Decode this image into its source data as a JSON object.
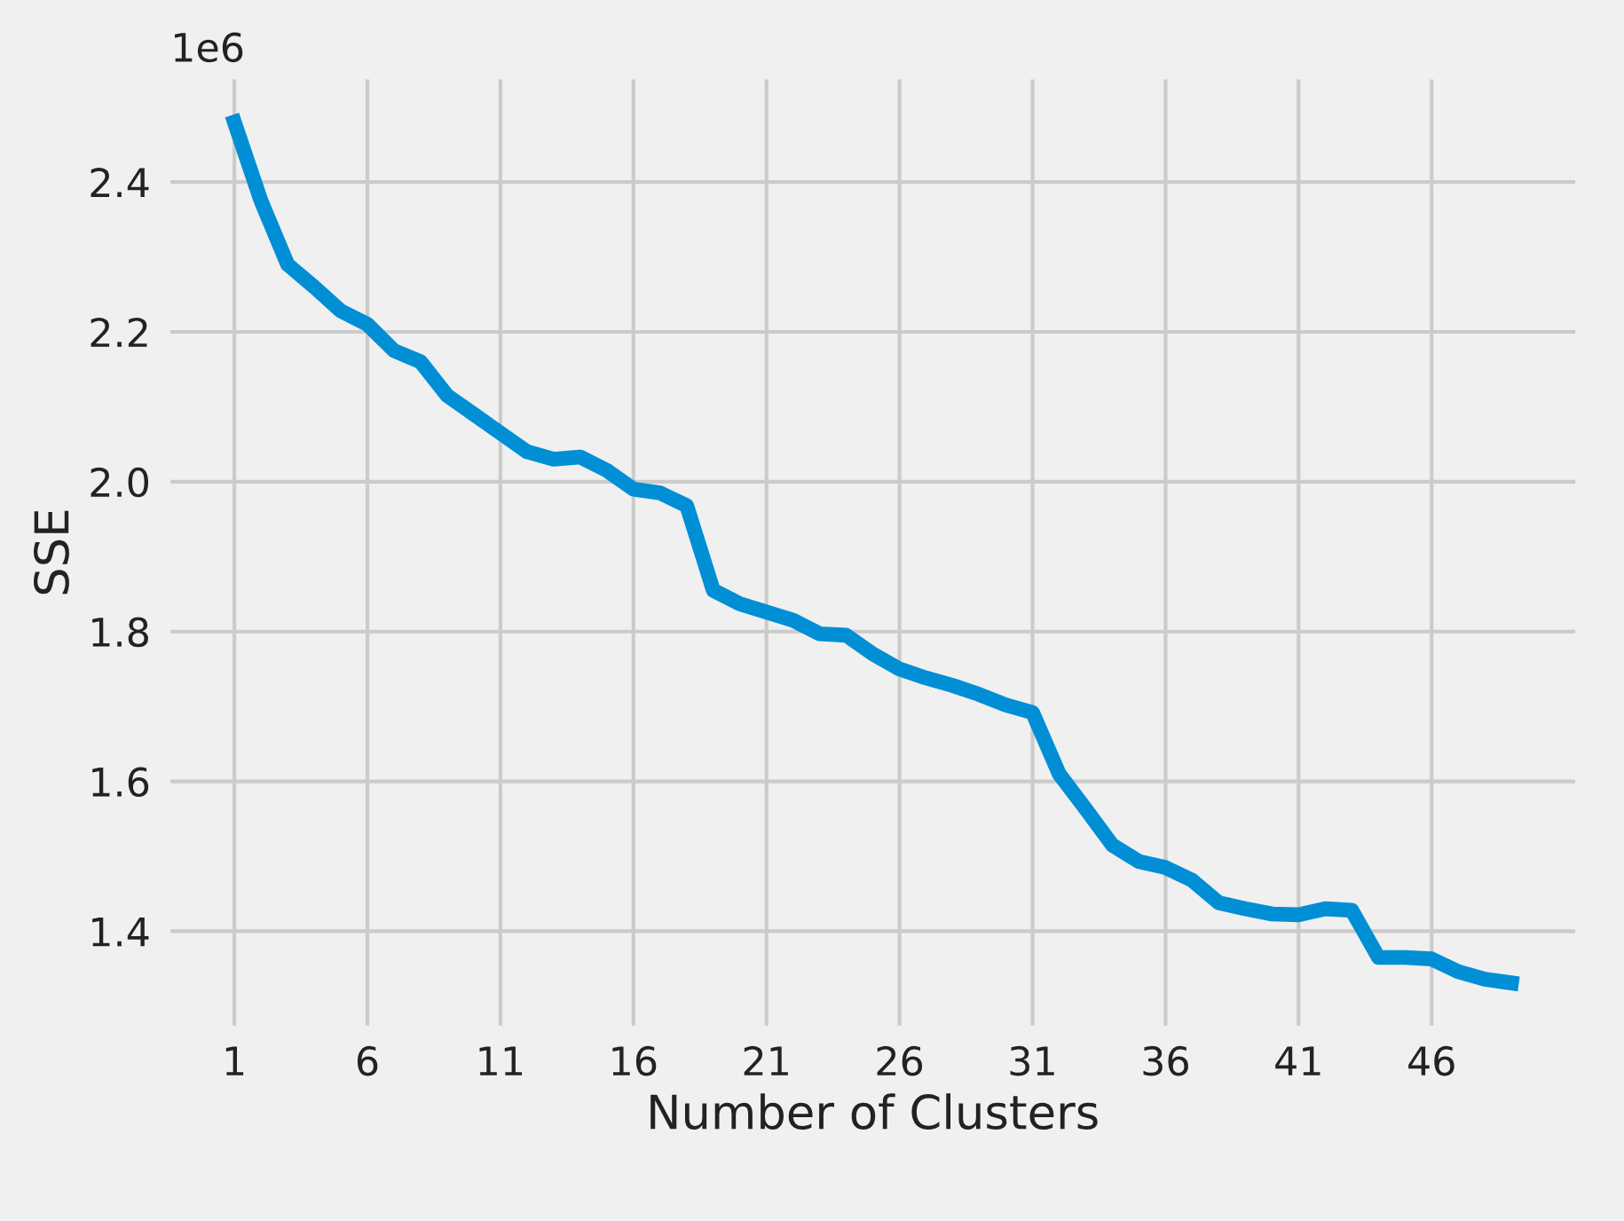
{
  "chart_data": {
    "type": "line",
    "xlabel": "Number of Clusters",
    "ylabel": "SSE",
    "annotations": [
      "1e6"
    ],
    "x": [
      1,
      2,
      3,
      4,
      5,
      6,
      7,
      8,
      9,
      10,
      11,
      12,
      13,
      14,
      15,
      16,
      17,
      18,
      19,
      20,
      21,
      22,
      23,
      24,
      25,
      26,
      27,
      28,
      29,
      30,
      31,
      32,
      33,
      34,
      35,
      36,
      37,
      38,
      39,
      40,
      41,
      42,
      43,
      44,
      45,
      46,
      47,
      48,
      49
    ],
    "series": [
      {
        "color": "#008fd5",
        "values": [
          2.48,
          2.375,
          2.29,
          2.26,
          2.228,
          2.21,
          2.175,
          2.16,
          2.115,
          2.09,
          2.065,
          2.04,
          2.03,
          2.033,
          2.015,
          1.99,
          1.985,
          1.968,
          1.855,
          1.837,
          1.826,
          1.815,
          1.797,
          1.795,
          1.77,
          1.75,
          1.738,
          1.728,
          1.716,
          1.702,
          1.692,
          1.61,
          1.563,
          1.515,
          1.493,
          1.485,
          1.468,
          1.438,
          1.43,
          1.423,
          1.422,
          1.43,
          1.428,
          1.365,
          1.365,
          1.363,
          1.346,
          1.336,
          1.331
        ]
      }
    ],
    "xlim": [
      -1.4,
      51.4
    ],
    "ylim": [
      1.274,
      2.537
    ],
    "xticks": [
      1,
      6,
      11,
      16,
      21,
      26,
      31,
      36,
      41,
      46
    ],
    "yticks": [
      {
        "value": 1.4,
        "label": "1.4"
      },
      {
        "value": 1.6,
        "label": "1.6"
      },
      {
        "value": 1.8,
        "label": "1.8"
      },
      {
        "value": 2.0,
        "label": "2.0"
      },
      {
        "value": 2.2,
        "label": "2.2"
      },
      {
        "value": 2.4,
        "label": "2.4"
      }
    ],
    "grid": true,
    "marker": "none",
    "line_style": "solid",
    "legend": false
  }
}
